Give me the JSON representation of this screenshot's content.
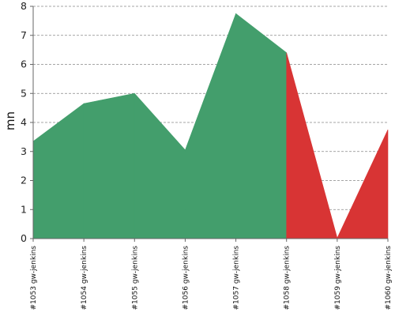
{
  "chart_data": {
    "type": "area",
    "title": "",
    "xlabel": "",
    "ylabel": "mn",
    "ylim": [
      0,
      8
    ],
    "yticks": [
      0,
      1,
      2,
      3,
      4,
      5,
      6,
      7,
      8
    ],
    "grid": true,
    "categories": [
      "#1053 gw-jenkins",
      "#1054 gw-jenkins",
      "#1055 gw-jenkins",
      "#1056 gw-jenkins",
      "#1057 gw-jenkins",
      "#1058 gw-jenkins",
      "#1059 gw-jenkins",
      "#1060 gw-jenkins"
    ],
    "values": [
      3.35,
      4.65,
      5.0,
      3.05,
      7.75,
      6.4,
      0.02,
      3.75
    ],
    "build_status": [
      "success",
      "success",
      "success",
      "success",
      "success",
      "failure",
      "failure",
      "success"
    ],
    "colors": {
      "success": "#439e6c",
      "failure": "#d83434",
      "grid": "#888888",
      "axis": "#666666"
    }
  }
}
